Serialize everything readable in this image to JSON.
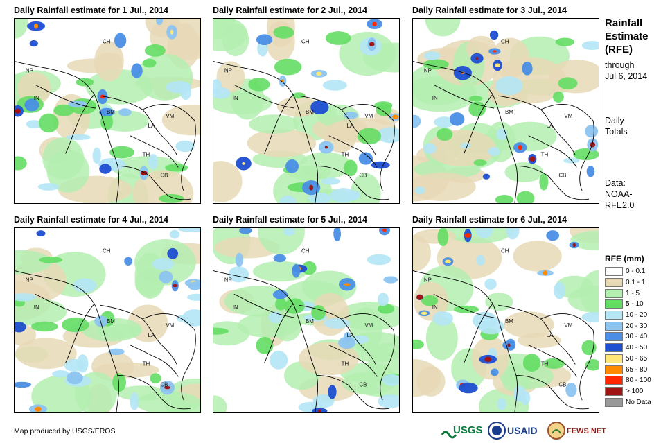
{
  "panels": [
    {
      "title": "Daily Rainfall estimate for 1 Jul., 2014"
    },
    {
      "title": "Daily Rainfall estimate for 2 Jul., 2014"
    },
    {
      "title": "Daily Rainfall estimate for 3 Jul., 2014"
    },
    {
      "title": "Daily Rainfall estimate for 4 Jul., 2014"
    },
    {
      "title": "Daily Rainfall estimate for 5 Jul., 2014"
    },
    {
      "title": "Daily Rainfall estimate for 6 Jul., 2014"
    }
  ],
  "map_labels": [
    "CH",
    "NP",
    "IN",
    "BM",
    "LA",
    "VM",
    "TH",
    "CB"
  ],
  "sidebar": {
    "title_lines": [
      "Rainfall",
      "Estimate",
      "(RFE)"
    ],
    "through_lines": [
      "through",
      "Jul 6, 2014"
    ],
    "daily_lines": [
      "Daily",
      "Totals"
    ],
    "data_lines": [
      "Data:",
      "NOAA-",
      "RFE2.0"
    ]
  },
  "legend": {
    "title": "RFE (mm)",
    "items": [
      {
        "label": "0 - 0.1",
        "color": "#ffffff"
      },
      {
        "label": "0.1 - 1",
        "color": "#e8d9b6"
      },
      {
        "label": "1 - 5",
        "color": "#b4eeb0"
      },
      {
        "label": "5 - 10",
        "color": "#64dd64"
      },
      {
        "label": "10 - 20",
        "color": "#b4e6f5"
      },
      {
        "label": "20 - 30",
        "color": "#8cc4f0"
      },
      {
        "label": "30 - 40",
        "color": "#4a8ee6"
      },
      {
        "label": "40 - 50",
        "color": "#1e4ed2"
      },
      {
        "label": "50 - 65",
        "color": "#ffe678"
      },
      {
        "label": "65 - 80",
        "color": "#ff8c00"
      },
      {
        "label": "80 - 100",
        "color": "#ff2800"
      },
      {
        "label": "> 100",
        "color": "#a01414"
      },
      {
        "label": "No Data",
        "color": "#999999"
      }
    ]
  },
  "credit": "Map produced by USGS/EROS",
  "logos": {
    "usgs": "USGS",
    "usaid": "USAID",
    "fewsnet": "FEWS NET"
  }
}
